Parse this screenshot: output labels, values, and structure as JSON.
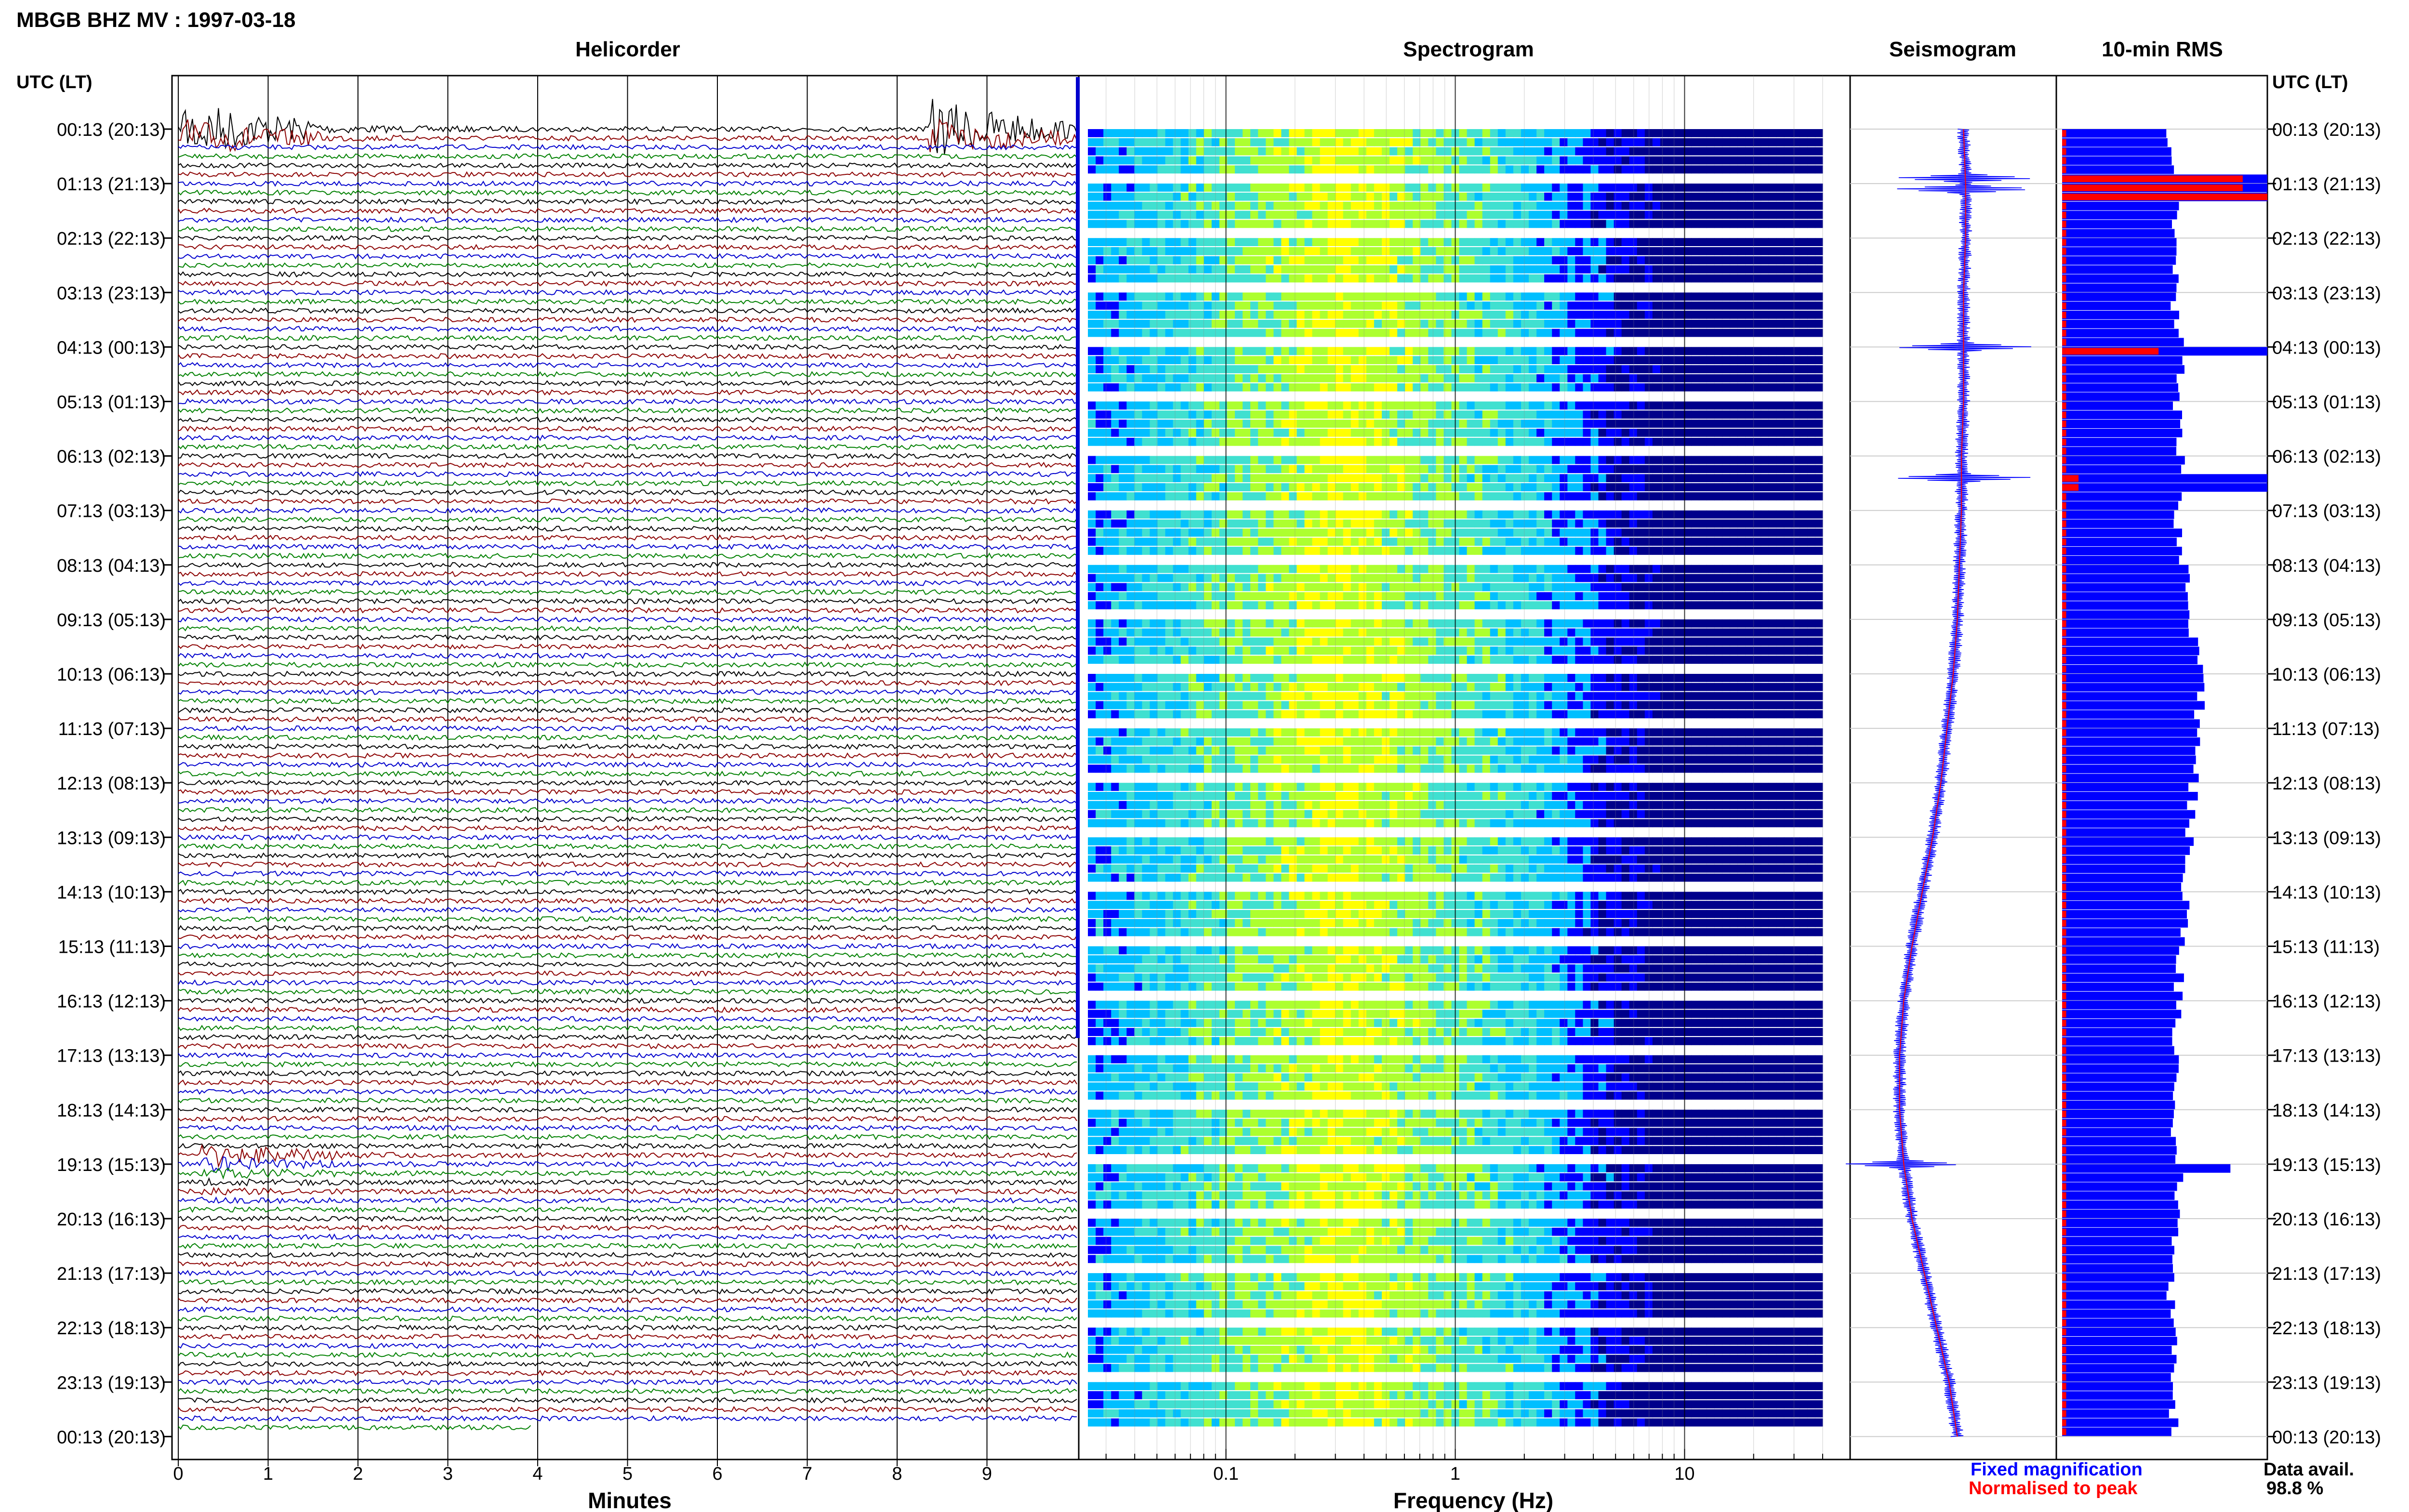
{
  "title": "MBGB BHZ MV : 1997-03-18",
  "panels": {
    "helicorder": "Helicorder",
    "spectrogram": "Spectrogram",
    "seismogram": "Seismogram",
    "rms": "10-min RMS"
  },
  "time_axis_label": "UTC (LT)",
  "legend": {
    "fixed": "Fixed magnification",
    "normalised": "Normalised to peak",
    "fixed_color": "#0000ff",
    "normalised_color": "#ff0000"
  },
  "data_avail": {
    "label": "Data avail.",
    "value": "98.8 %"
  },
  "chart_data": [
    {
      "type": "line",
      "panel": "helicorder",
      "xlabel": "Minutes",
      "x_ticks": [
        "0",
        "1",
        "2",
        "3",
        "4",
        "5",
        "6",
        "7",
        "8",
        "9"
      ],
      "xlim": [
        0,
        10
      ],
      "row_labels": [
        "00:13 (20:13)",
        "01:13 (21:13)",
        "02:13 (22:13)",
        "03:13 (23:13)",
        "04:13 (00:13)",
        "05:13 (01:13)",
        "06:13 (02:13)",
        "07:13 (03:13)",
        "08:13 (04:13)",
        "09:13 (05:13)",
        "10:13 (06:13)",
        "11:13 (07:13)",
        "12:13 (08:13)",
        "13:13 (09:13)",
        "14:13 (10:13)",
        "15:13 (11:13)",
        "16:13 (12:13)",
        "17:13 (13:13)",
        "18:13 (14:13)",
        "19:13 (15:13)",
        "20:13 (16:13)",
        "21:13 (17:13)",
        "22:13 (18:13)",
        "23:13 (19:13)",
        "00:13 (20:13)"
      ],
      "trace_colors": [
        "#000000",
        "#8b0000",
        "#0000cd",
        "#008000"
      ],
      "traces_per_hour": 6,
      "events": [
        {
          "start_utc": "00:13",
          "minute": 0.1,
          "label": "large event",
          "duration_min": 1.2
        },
        {
          "start_utc": "00:13",
          "minute": 8.4,
          "label": "large event",
          "duration_min": 1.5
        },
        {
          "start_utc": "19:03",
          "minute": 0.3,
          "label": "event cluster",
          "duration_min": 6
        }
      ]
    },
    {
      "type": "heatmap",
      "panel": "spectrogram",
      "xlabel": "Frequency (Hz)",
      "x_scale": "log",
      "xlim": [
        0.025,
        40
      ],
      "x_ticks": [
        "0.1",
        "1",
        "10"
      ],
      "peak_band_hz": [
        0.2,
        0.5
      ],
      "colormap": [
        "#00008b",
        "#0000ff",
        "#00bfff",
        "#40e0d0",
        "#adff2f",
        "#ffff00",
        "#ff8c00",
        "#ff0000"
      ]
    },
    {
      "type": "line",
      "panel": "seismogram",
      "series": [
        {
          "name": "Fixed magnification",
          "color": "#0000ff"
        },
        {
          "name": "Normalised to peak",
          "color": "#ff0000"
        }
      ],
      "offset_by_hour": [
        0.55,
        0.56,
        0.56,
        0.55,
        0.55,
        0.55,
        0.54,
        0.54,
        0.53,
        0.52,
        0.5,
        0.47,
        0.44,
        0.4,
        0.35,
        0.3,
        0.26,
        0.24,
        0.24,
        0.26,
        0.3,
        0.36,
        0.42,
        0.48,
        0.52
      ]
    },
    {
      "type": "bar",
      "panel": "rms",
      "orientation": "horizontal",
      "xlim": [
        0,
        1
      ],
      "series": [
        {
          "name": "Fixed magnification",
          "color": "#0000ff"
        },
        {
          "name": "Normalised to peak",
          "color": "#ff0000"
        }
      ],
      "rms_by_hour": [
        0.52,
        0.58,
        0.55,
        0.54,
        0.58,
        0.56,
        0.58,
        0.56,
        0.6,
        0.62,
        0.68,
        0.66,
        0.64,
        0.62,
        0.6,
        0.58,
        0.56,
        0.56,
        0.54,
        0.58,
        0.55,
        0.53,
        0.54,
        0.55,
        0.54
      ],
      "spikes": [
        {
          "hour": 0.9,
          "fixed": 1.0,
          "normalised": 0.88
        },
        {
          "hour": 1.1,
          "fixed": 1.0,
          "normalised": 1.0
        },
        {
          "hour": 4.0,
          "fixed": 1.0,
          "normalised": 0.47
        },
        {
          "hour": 6.4,
          "fixed": 1.0,
          "normalised": 0.08
        },
        {
          "hour": 19.0,
          "fixed": 0.82,
          "normalised": 0.02
        }
      ]
    }
  ]
}
